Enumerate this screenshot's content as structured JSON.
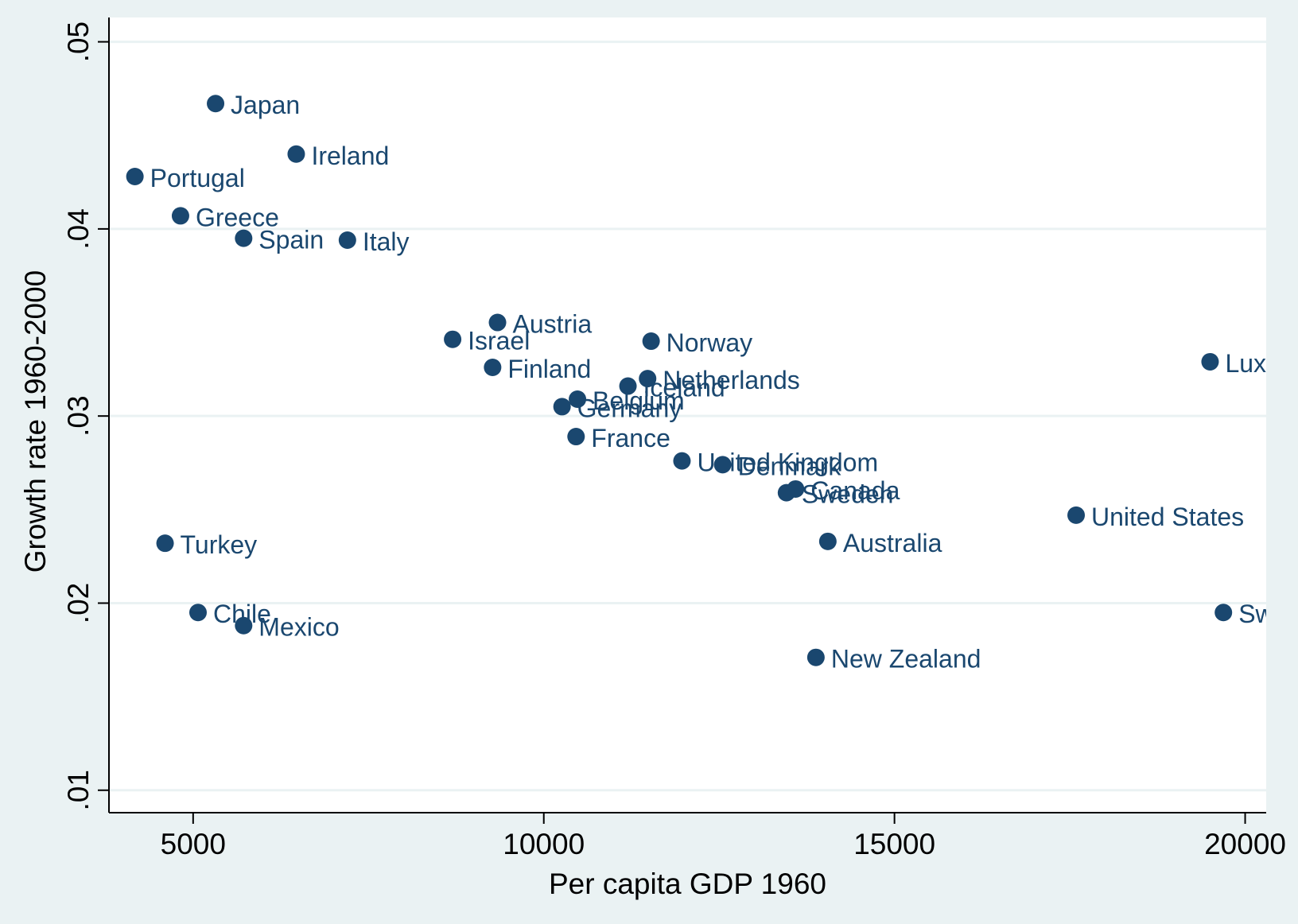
{
  "chart_data": {
    "type": "scatter",
    "title": "",
    "xlabel": "Per capita GDP 1960",
    "ylabel": "Growth rate 1960-2000",
    "xlim": [
      3800,
      20300
    ],
    "ylim": [
      0.0088,
      0.0513
    ],
    "xticks": [
      5000,
      10000,
      15000,
      20000
    ],
    "xtick_labels": [
      "5000",
      "10000",
      "15000",
      "20000"
    ],
    "yticks": [
      0.01,
      0.02,
      0.03,
      0.04,
      0.05
    ],
    "ytick_labels": [
      ".01",
      ".02",
      ".03",
      ".04",
      ".05"
    ],
    "grid": "horizontal",
    "marker_color": "#1a476f",
    "points": [
      {
        "label": "Japan",
        "x": 5320,
        "y": 0.0467
      },
      {
        "label": "Ireland",
        "x": 6470,
        "y": 0.044
      },
      {
        "label": "Portugal",
        "x": 4170,
        "y": 0.0428
      },
      {
        "label": "Greece",
        "x": 4820,
        "y": 0.0407
      },
      {
        "label": "Spain",
        "x": 5720,
        "y": 0.0395
      },
      {
        "label": "Italy",
        "x": 7200,
        "y": 0.0394
      },
      {
        "label": "Austria",
        "x": 9340,
        "y": 0.035
      },
      {
        "label": "Israel",
        "x": 8700,
        "y": 0.0341
      },
      {
        "label": "Finland",
        "x": 9270,
        "y": 0.0326
      },
      {
        "label": "Norway",
        "x": 11530,
        "y": 0.034
      },
      {
        "label": "Netherlands",
        "x": 11480,
        "y": 0.032
      },
      {
        "label": "Iceland",
        "x": 11200,
        "y": 0.0316
      },
      {
        "label": "Belgium",
        "x": 10480,
        "y": 0.0309
      },
      {
        "label": "Germany",
        "x": 10260,
        "y": 0.0305
      },
      {
        "label": "France",
        "x": 10460,
        "y": 0.0289
      },
      {
        "label": "United Kingdom",
        "x": 11970,
        "y": 0.0276
      },
      {
        "label": "Denmark",
        "x": 12550,
        "y": 0.0274
      },
      {
        "label": "Canada",
        "x": 13590,
        "y": 0.0261
      },
      {
        "label": "Sweden",
        "x": 13460,
        "y": 0.0259
      },
      {
        "label": "Australia",
        "x": 14050,
        "y": 0.0233
      },
      {
        "label": "United States",
        "x": 17590,
        "y": 0.0247
      },
      {
        "label": "Luxembourg",
        "x": 19500,
        "y": 0.0329
      },
      {
        "label": "Switzerland",
        "x": 19690,
        "y": 0.0195
      },
      {
        "label": "Turkey",
        "x": 4600,
        "y": 0.0232
      },
      {
        "label": "Chile",
        "x": 5070,
        "y": 0.0195
      },
      {
        "label": "Mexico",
        "x": 5720,
        "y": 0.0188
      },
      {
        "label": "New Zealand",
        "x": 13880,
        "y": 0.0171
      }
    ]
  }
}
